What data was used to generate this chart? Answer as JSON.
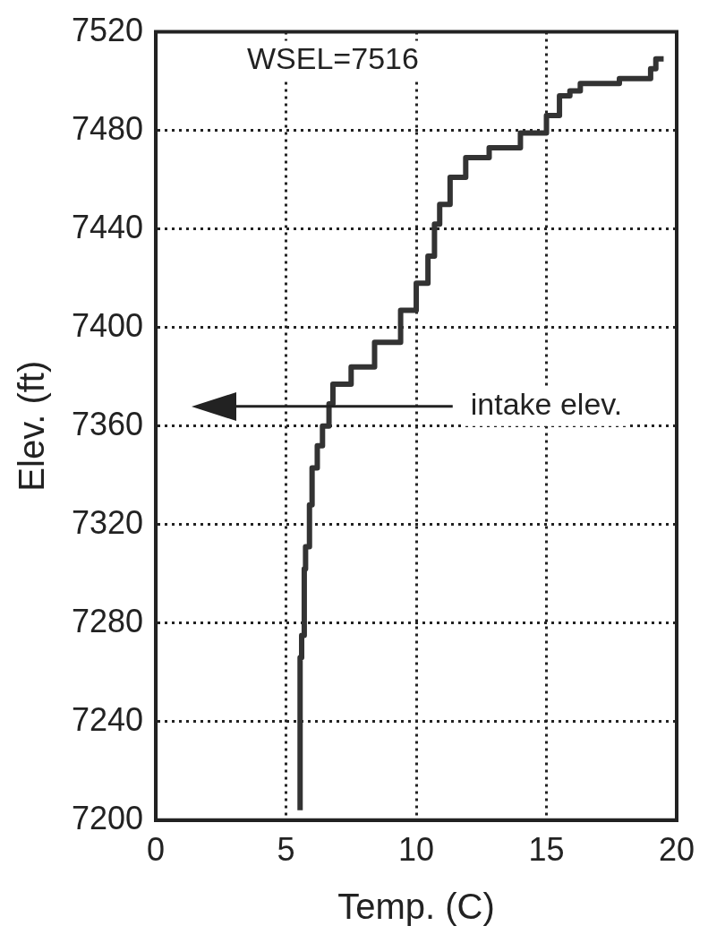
{
  "chart_data": {
    "type": "step",
    "xlabel": "Temp. (C)",
    "ylabel": "Elev. (ft)",
    "x": [
      5.54,
      5.6,
      5.7,
      5.75,
      5.9,
      6.0,
      6.2,
      6.4,
      6.65,
      6.8,
      7.5,
      8.4,
      9.4,
      10.0,
      10.45,
      10.7,
      10.9,
      11.3,
      11.9,
      12.8,
      14.0,
      15.0,
      15.5,
      15.9,
      16.3,
      17.8,
      19.0,
      19.2,
      19.5
    ],
    "values": [
      7204,
      7266,
      7275,
      7302,
      7311,
      7328,
      7343,
      7352,
      7360,
      7369,
      7377,
      7384,
      7394,
      7407,
      7418,
      7429,
      7442,
      7450,
      7461,
      7469,
      7473,
      7479,
      7486,
      7494,
      7496,
      7499,
      7501,
      7505,
      7509
    ],
    "color": "#333333",
    "xlim": [
      0,
      20
    ],
    "xticks": [
      0,
      5,
      10,
      15,
      20
    ],
    "ylim": [
      7200,
      7520
    ],
    "yticks": [
      7200,
      7240,
      7280,
      7320,
      7360,
      7400,
      7440,
      7480,
      7520
    ],
    "grid": true,
    "line_style": "solid",
    "marker": "none",
    "legend": false,
    "ref_lines": [
      {
        "axis": "y",
        "value": 7368,
        "label": "intake elev."
      }
    ],
    "annotations": [
      "WSEL=7516"
    ]
  }
}
